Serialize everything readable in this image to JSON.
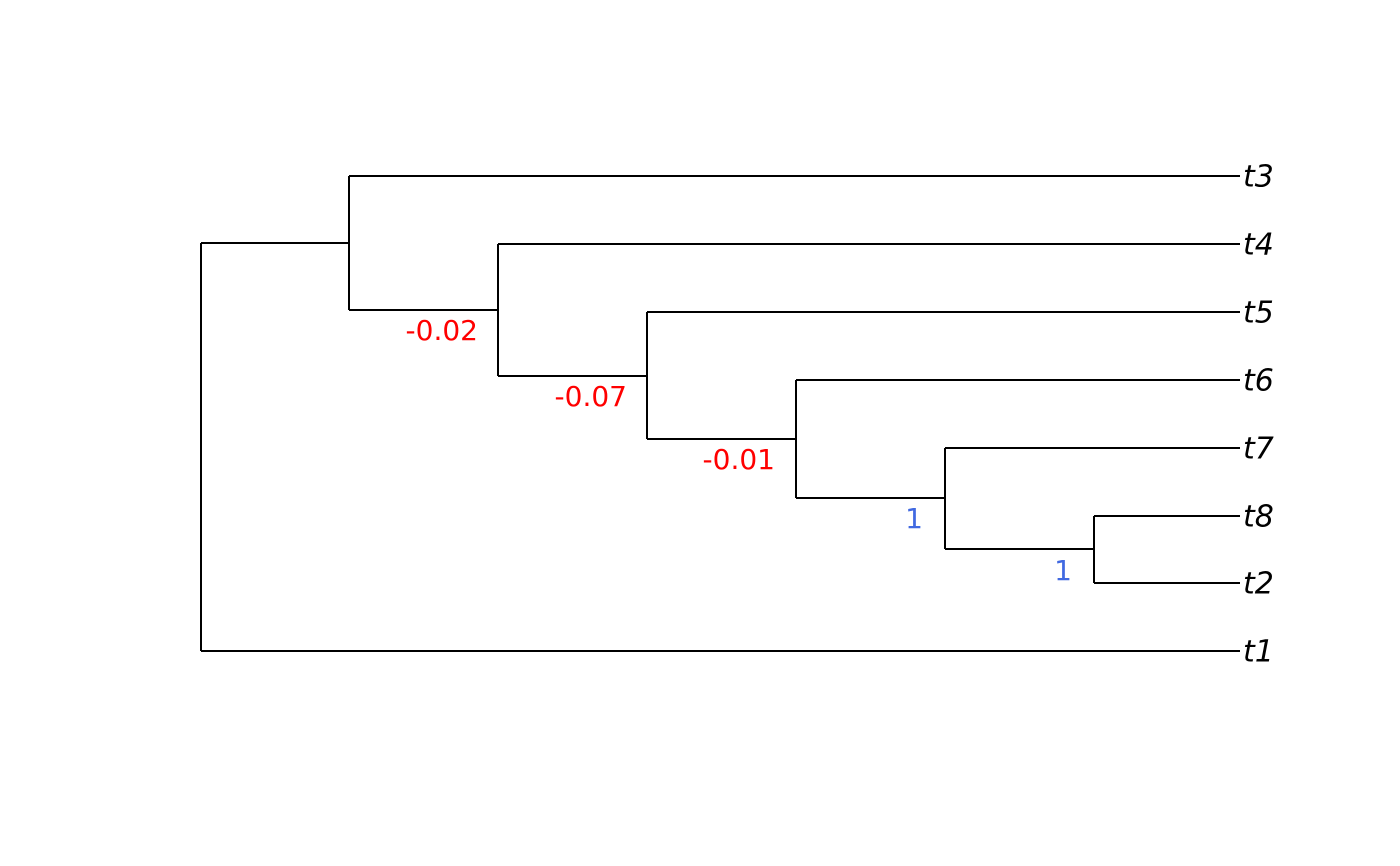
{
  "tips": [
    "t3",
    "t4",
    "t5",
    "t6",
    "t7",
    "t8",
    "t2",
    "t1"
  ],
  "node_labels": [
    {
      "label": "-0.02",
      "color": "#ff0000"
    },
    {
      "label": "-0.07",
      "color": "#ff0000"
    },
    {
      "label": "-0.01",
      "color": "#ff0000"
    },
    {
      "label": "1",
      "color": "#4169e1"
    },
    {
      "label": "1",
      "color": "#4169e1"
    }
  ]
}
